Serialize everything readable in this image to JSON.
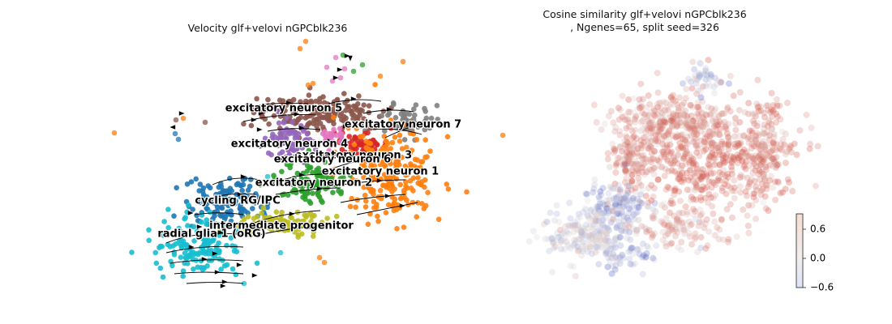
{
  "chart_data": [
    {
      "type": "scatter",
      "title": "Velocity glf+velovi nGPCblk236",
      "clusters": [
        {
          "name": "excitatory neuron 5",
          "color": "#8c564b"
        },
        {
          "name": "excitatory neuron 7",
          "color": "#7f7f7f"
        },
        {
          "name": "excitatory neuron 4",
          "color": "#9467bd"
        },
        {
          "name": "excitatory neuron 3",
          "color": "#d62728"
        },
        {
          "name": "excitatory neuron 6",
          "color": "#e377c2"
        },
        {
          "name": "excitatory neuron 1",
          "color": "#ff7f0e"
        },
        {
          "name": "excitatory neuron 2",
          "color": "#2ca02c"
        },
        {
          "name": "cycling RG/IPC",
          "color": "#1f77b4"
        },
        {
          "name": "intermediate progenitor",
          "color": "#bcbd22"
        },
        {
          "name": "radial glia 1 (oRG)",
          "color": "#17becf"
        }
      ],
      "stream_arrows": true,
      "axes_visible": false
    },
    {
      "type": "scatter",
      "title": "Cosine similarity glf+velovi nGPCblk236\n, Ngenes=65, split seed=326",
      "colormap": "coolwarm",
      "colorbar": {
        "ticks": [
          "0.6",
          "0.0",
          "−0.6"
        ],
        "range": [
          -0.6,
          0.9
        ]
      },
      "axes_visible": false
    }
  ],
  "colors": {
    "low": "#3b4cc0",
    "mid": "#dddddd",
    "high": "#d04535"
  }
}
